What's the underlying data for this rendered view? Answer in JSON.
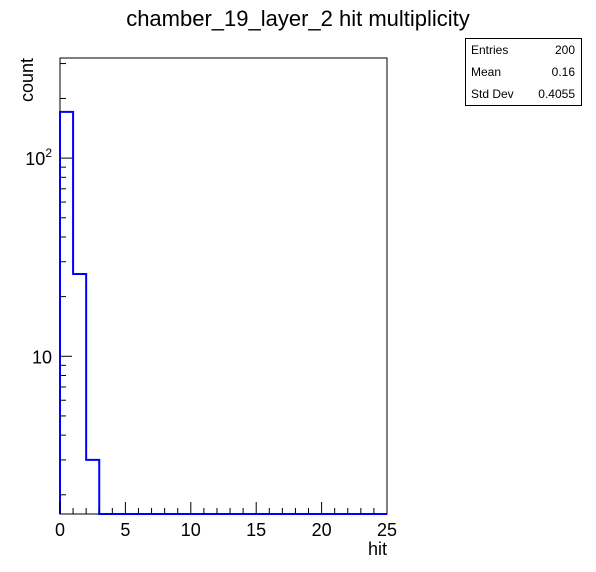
{
  "chart_data": {
    "type": "histogram",
    "title": "chamber_19_layer_2 hit multiplicity",
    "xlabel": "hit",
    "ylabel": "count",
    "xlim": [
      0,
      25
    ],
    "ylim": [
      1.6,
      320
    ],
    "yscale": "log",
    "bin_edges": [
      0,
      1,
      2,
      3,
      4,
      5,
      6,
      7,
      8,
      9,
      10,
      11,
      12,
      13,
      14,
      15,
      16,
      17,
      18,
      19,
      20,
      21,
      22,
      23,
      24,
      25
    ],
    "values": [
      171,
      26,
      3,
      0,
      0,
      0,
      0,
      0,
      0,
      0,
      0,
      0,
      0,
      0,
      0,
      0,
      0,
      0,
      0,
      0,
      0,
      0,
      0,
      0,
      0
    ],
    "x_ticks": [
      "0",
      "5",
      "10",
      "15",
      "20",
      "25"
    ],
    "y_ticks": [
      {
        "value": 10,
        "label": "10"
      },
      {
        "value": 100,
        "label": "10",
        "sup": "2"
      }
    ],
    "line_color": "#0000ff",
    "grid": false,
    "stats": {
      "entries_label": "Entries",
      "entries": "200",
      "mean_label": "Mean",
      "mean": "0.16",
      "stddev_label": "Std Dev",
      "stddev": "0.4055"
    }
  }
}
